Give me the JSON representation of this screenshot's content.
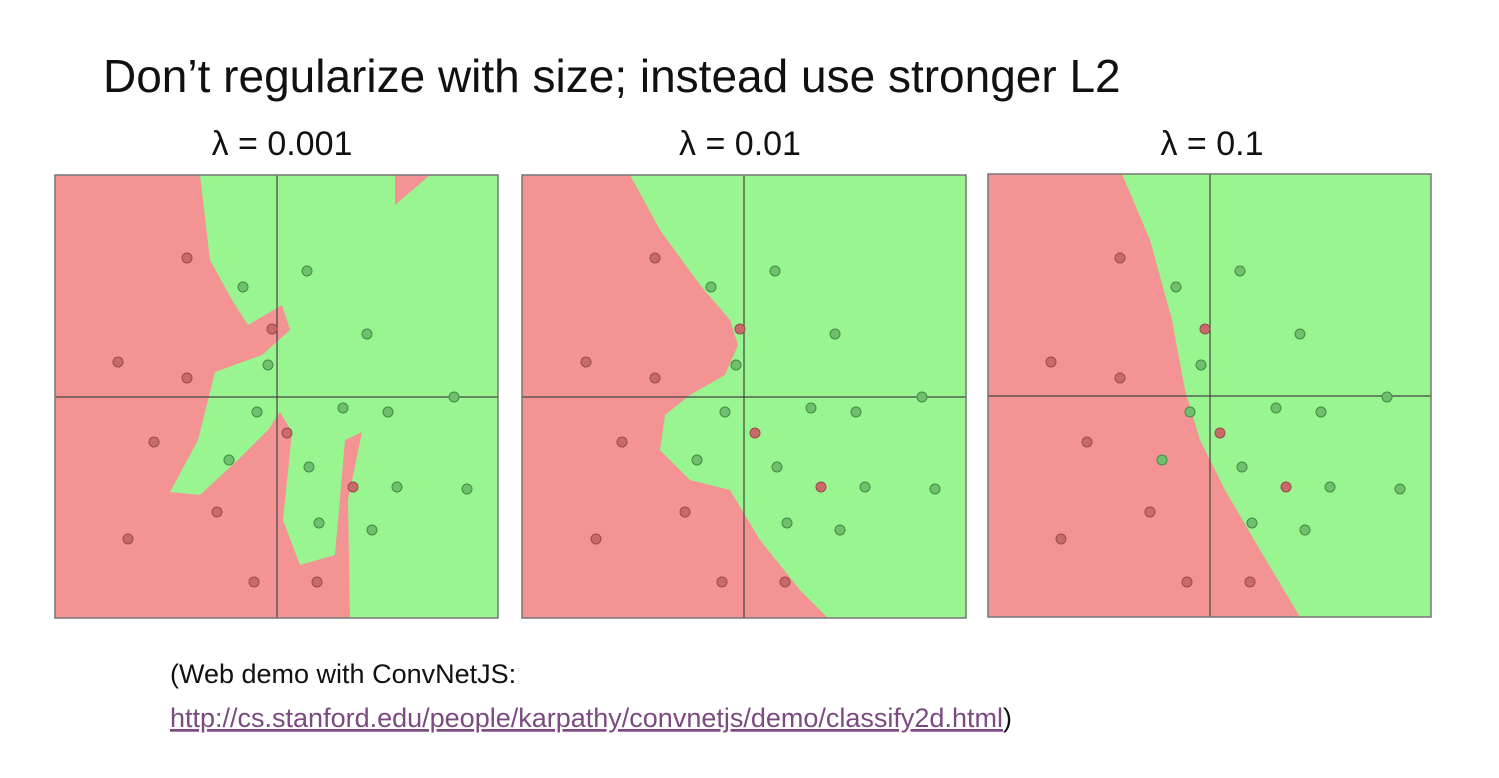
{
  "title": "Don’t regularize with size; instead use stronger L2",
  "panels": [
    {
      "label": "λ = 0.001"
    },
    {
      "label": "λ = 0.01"
    },
    {
      "label": "λ = 0.1"
    }
  ],
  "caption": {
    "prefix": "(Web demo with ConvNetJS:",
    "link": "http://cs.stanford.edu/people/karpathy/convnetjs/demo/classify2d.html",
    "suffix": ")"
  }
}
